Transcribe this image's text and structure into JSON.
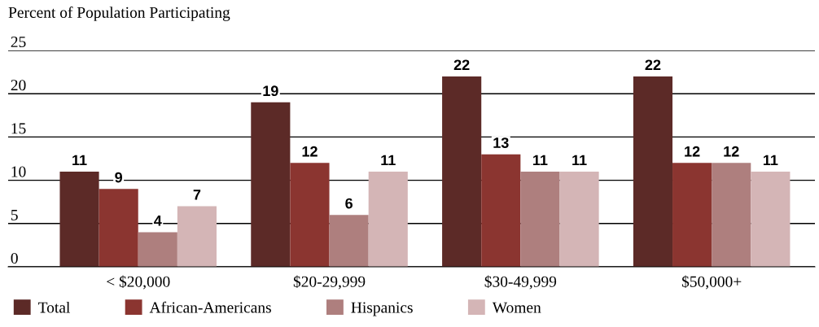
{
  "chart_data": {
    "type": "bar",
    "title": "Percent of Population Participating",
    "categories": [
      "< $20,000",
      "$20-29,999",
      "$30-49,999",
      "$50,000+"
    ],
    "series": [
      {
        "name": "Total",
        "color": "#5c2a27",
        "values": [
          11,
          19,
          22,
          22
        ]
      },
      {
        "name": "African-Americans",
        "color": "#8b3530",
        "values": [
          9,
          12,
          13,
          12
        ]
      },
      {
        "name": "Hispanics",
        "color": "#ae7f7e",
        "values": [
          4,
          6,
          11,
          12
        ]
      },
      {
        "name": "Women",
        "color": "#d4b5b6",
        "values": [
          7,
          11,
          11,
          11
        ]
      }
    ],
    "ylim": [
      0,
      25
    ],
    "yticks": [
      0,
      5,
      10,
      15,
      20,
      25
    ],
    "grid": "y",
    "legend": "bottom",
    "data_labels": true
  }
}
